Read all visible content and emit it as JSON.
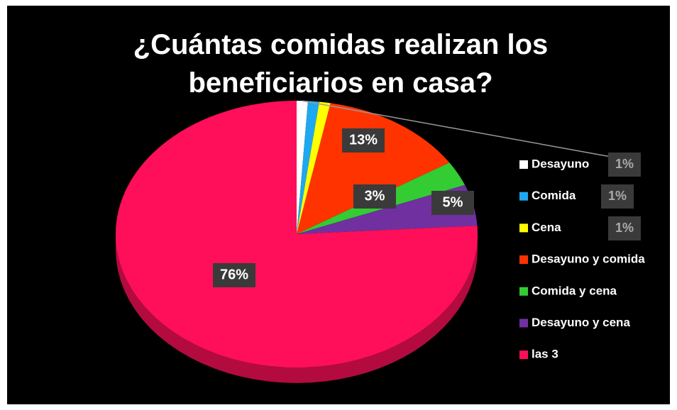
{
  "chart_data": {
    "type": "pie",
    "title": "¿Cuántas comidas realizan los beneficiarios en casa?",
    "categories": [
      "Desayuno",
      "Comida",
      "Cena",
      "Desayuno y comida",
      "Comida y cena",
      "Desayuno y cena",
      "las 3"
    ],
    "values": [
      1,
      1,
      1,
      13,
      3,
      5,
      76
    ],
    "value_labels": [
      "1%",
      "1%",
      "1%",
      "13%",
      "3%",
      "5%",
      "76%"
    ],
    "colors": [
      "#ffffff",
      "#1ea8ef",
      "#ffff00",
      "#ff3300",
      "#33cc33",
      "#7030a0",
      "#ff0f5a"
    ],
    "legend": "right"
  }
}
